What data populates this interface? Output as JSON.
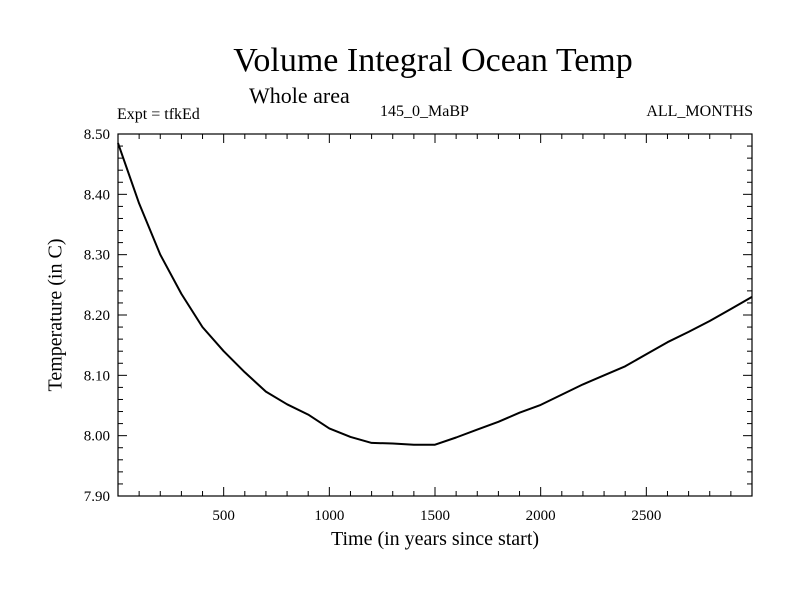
{
  "header": {
    "title": "Volume Integral Ocean Temp",
    "subtitle": "Whole area",
    "experiment": "Expt = tfkEd",
    "run_label": "145_0_MaBP",
    "period": "ALL_MONTHS"
  },
  "chart_data": {
    "type": "line",
    "title": "Volume Integral Ocean Temp",
    "subtitle": "Whole area",
    "xlabel": "Time (in years since start)",
    "ylabel": "Temperature (in C)",
    "xlim": [
      0,
      3000
    ],
    "ylim": [
      7.9,
      8.5
    ],
    "x_ticks": [
      500,
      1000,
      1500,
      2000,
      2500
    ],
    "y_ticks": [
      "7.90",
      "8.00",
      "8.10",
      "8.20",
      "8.30",
      "8.40",
      "8.50"
    ],
    "grid": false,
    "series": [
      {
        "x": [
          0,
          100,
          200,
          300,
          400,
          500,
          600,
          700,
          800,
          900,
          1000,
          1100,
          1200,
          1300,
          1400,
          1500,
          1600,
          1700,
          1800,
          1900,
          2000,
          2100,
          2200,
          2300,
          2400,
          2500,
          2600,
          2700,
          2800,
          2900,
          3000
        ],
        "y": [
          8.485,
          8.385,
          8.3,
          8.235,
          8.18,
          8.14,
          8.105,
          8.073,
          8.052,
          8.035,
          8.012,
          7.998,
          7.988,
          7.987,
          7.985,
          7.985,
          7.997,
          8.01,
          8.023,
          8.038,
          8.051,
          8.068,
          8.085,
          8.1,
          8.115,
          8.135,
          8.155,
          8.172,
          8.19,
          8.21,
          8.23
        ],
        "color": "#000000"
      }
    ]
  }
}
